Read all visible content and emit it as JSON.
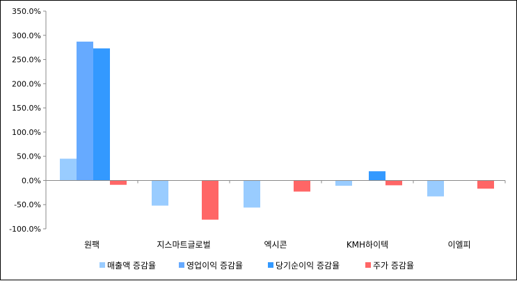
{
  "chart_data": {
    "type": "bar",
    "categories": [
      "원팩",
      "지스마트글로벌",
      "엑시콘",
      "KMH하이텍",
      "이엘피"
    ],
    "series": [
      {
        "name": "매출액 증감율",
        "color": "#99ccff",
        "values": [
          45.0,
          -52.0,
          -56.0,
          -11.0,
          -33.0
        ]
      },
      {
        "name": "영업이익 증감율",
        "color": "#66aaff",
        "values": [
          287.0,
          null,
          null,
          null,
          null
        ]
      },
      {
        "name": "당기순이익 증감율",
        "color": "#3399ff",
        "values": [
          273.0,
          null,
          null,
          19.0,
          null
        ]
      },
      {
        "name": "주가 증감율",
        "color": "#ff6666",
        "values": [
          -9.0,
          -81.0,
          -23.0,
          -10.0,
          -17.0
        ]
      }
    ],
    "yticks": [
      "350.0%",
      "300.0%",
      "250.0%",
      "200.0%",
      "150.0%",
      "100.0%",
      "50.0%",
      "0.0%",
      "-50.0%",
      "-100.0%"
    ],
    "ylim": [
      -100,
      350
    ],
    "ytick_step": 50,
    "grid": false,
    "legend_position": "bottom"
  }
}
